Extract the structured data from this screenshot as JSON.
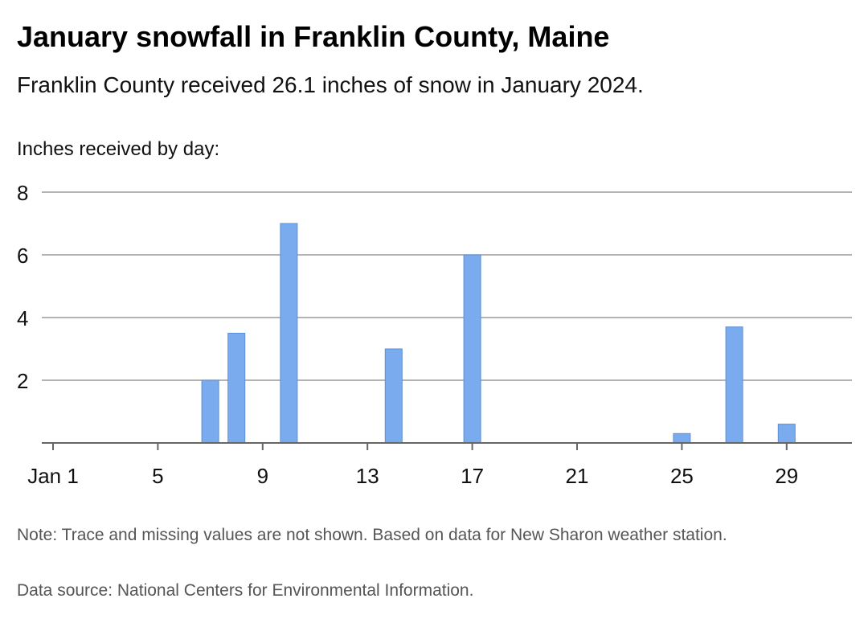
{
  "header": {
    "title": "January snowfall in Franklin County, Maine",
    "subtitle": "Franklin County received 26.1 inches of snow in January 2024."
  },
  "footer": {
    "note": "Note: Trace and missing values are not shown. Based on data for New Sharon weather station.",
    "source": "Data source: National Centers for Environmental Information."
  },
  "colors": {
    "bar_fill": "#7aabee",
    "bar_stroke": "#5b8fd6",
    "grid": "#9a9a9a",
    "axis": "#666666"
  },
  "chart_data": {
    "type": "bar",
    "title": "January snowfall in Franklin County, Maine",
    "subtitle": "Franklin County received 26.1 inches of snow in January 2024.",
    "ylabel": "Inches received by day:",
    "xlabel": "",
    "x_domain": [
      1,
      31
    ],
    "ylim": [
      0,
      8
    ],
    "yticks": [
      2,
      4,
      6,
      8
    ],
    "xticks": [
      {
        "day": 1,
        "label": "Jan 1"
      },
      {
        "day": 5,
        "label": "5"
      },
      {
        "day": 9,
        "label": "9"
      },
      {
        "day": 13,
        "label": "13"
      },
      {
        "day": 17,
        "label": "17"
      },
      {
        "day": 21,
        "label": "21"
      },
      {
        "day": 25,
        "label": "25"
      },
      {
        "day": 29,
        "label": "29"
      }
    ],
    "grid": true,
    "legend": "none",
    "series": [
      {
        "values": [
          {
            "day": 7,
            "inches": 2.0
          },
          {
            "day": 8,
            "inches": 3.5
          },
          {
            "day": 10,
            "inches": 7.0
          },
          {
            "day": 14,
            "inches": 3.0
          },
          {
            "day": 17,
            "inches": 6.0
          },
          {
            "day": 25,
            "inches": 0.3
          },
          {
            "day": 27,
            "inches": 3.7
          },
          {
            "day": 29,
            "inches": 0.6
          }
        ]
      }
    ]
  }
}
